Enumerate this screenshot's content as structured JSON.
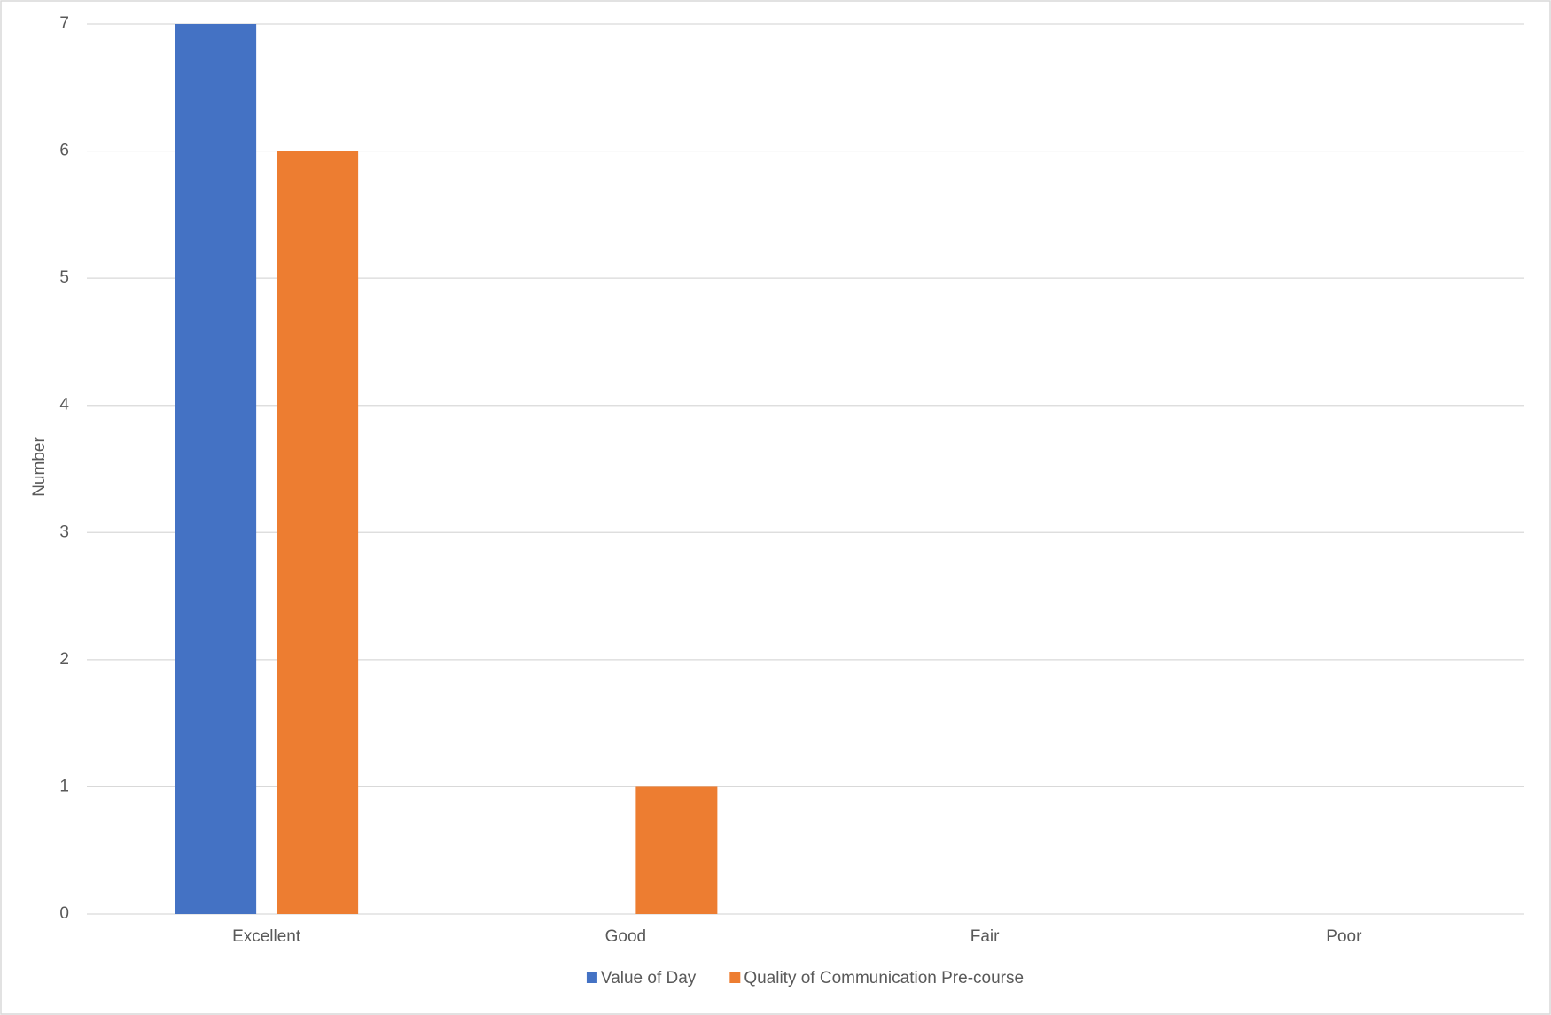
{
  "chart_data": {
    "type": "bar",
    "y_label": "Number",
    "categories": [
      "Excellent",
      "Good",
      "Fair",
      "Poor"
    ],
    "series": [
      {
        "name": "Value of Day",
        "color": "#4472c4",
        "values": [
          7,
          0,
          0,
          0
        ]
      },
      {
        "name": "Quality of Communication Pre-course",
        "color": "#ed7d31",
        "values": [
          6,
          1,
          0,
          0
        ]
      }
    ],
    "ylim": [
      0,
      7
    ],
    "yticks": [
      0,
      1,
      2,
      3,
      4,
      5,
      6,
      7
    ],
    "grid": true,
    "legend": "bottom"
  }
}
